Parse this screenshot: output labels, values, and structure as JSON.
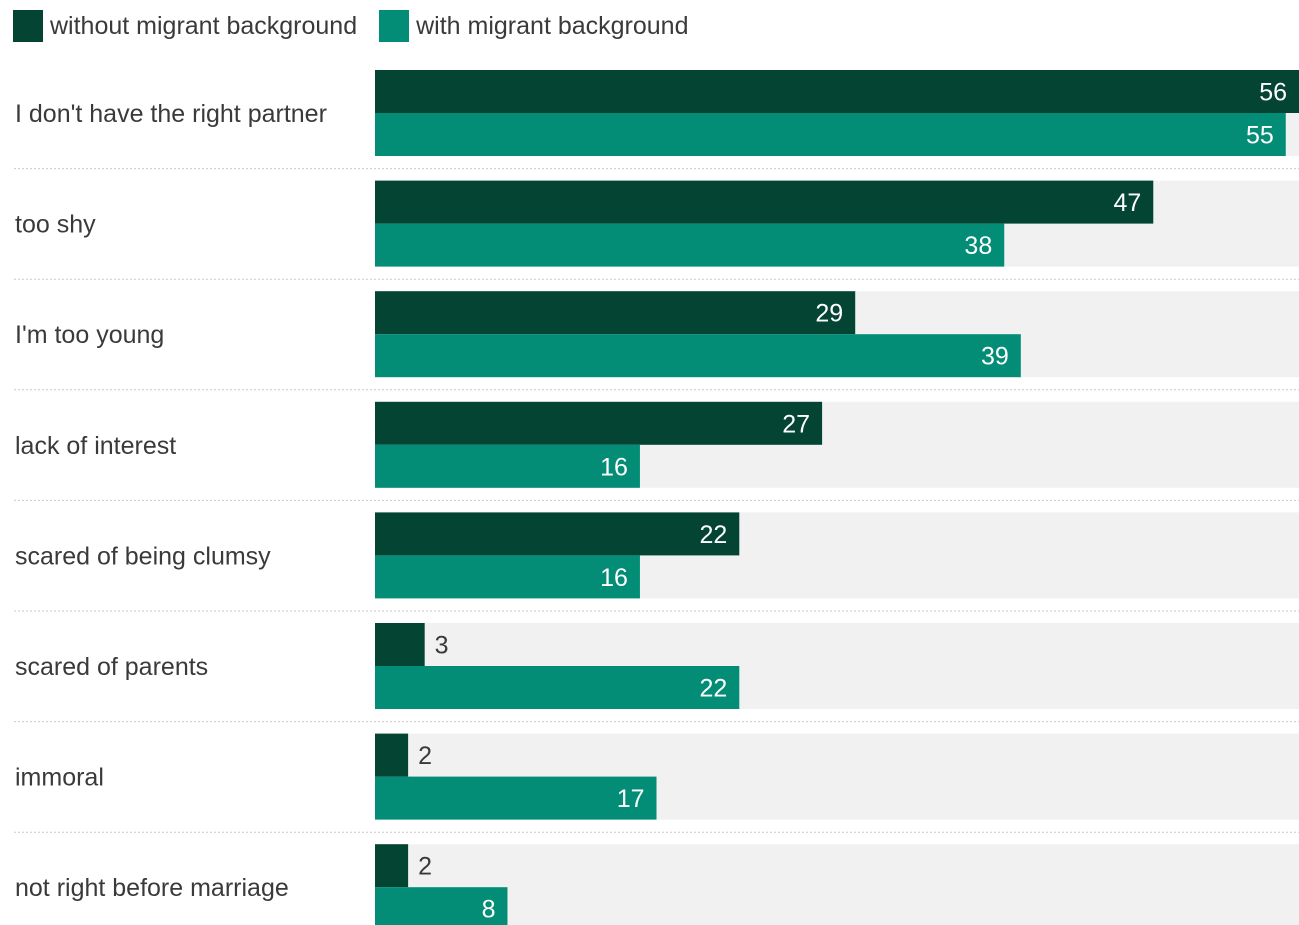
{
  "colors": {
    "without": "#034432",
    "with": "#038c76",
    "track": "#f1f1f1",
    "separator": "#c9c9c9",
    "label_inside": "#ffffff",
    "label_outside": "#3a3a3a"
  },
  "legend": {
    "items": [
      {
        "label": "without migrant background",
        "color": "#034432"
      },
      {
        "label": "with migrant background",
        "color": "#038c76"
      }
    ]
  },
  "chart_data": {
    "type": "bar",
    "orientation": "horizontal",
    "categories": [
      "I don't have the right partner",
      "too shy",
      "I'm too young",
      "lack of interest",
      "scared of being clumsy",
      "scared of parents",
      "immoral",
      "not right before marriage"
    ],
    "series": [
      {
        "name": "without migrant background",
        "values": [
          56,
          47,
          29,
          27,
          22,
          3,
          2,
          2
        ]
      },
      {
        "name": "with migrant background",
        "values": [
          55,
          38,
          39,
          16,
          16,
          22,
          17,
          8
        ]
      }
    ],
    "xlim": [
      0,
      55.8
    ],
    "legend_position": "top-left",
    "grid": false
  }
}
